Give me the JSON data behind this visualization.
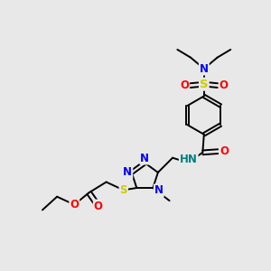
{
  "background_color": "#e8e8e8",
  "fig_size": [
    3.0,
    3.0
  ],
  "dpi": 100,
  "atom_colors": {
    "N": "#0000ff",
    "O": "#ff0000",
    "S": "#cccc00",
    "C": "#000000",
    "H": "#008080"
  },
  "lw": 1.4,
  "fs": 8.5
}
